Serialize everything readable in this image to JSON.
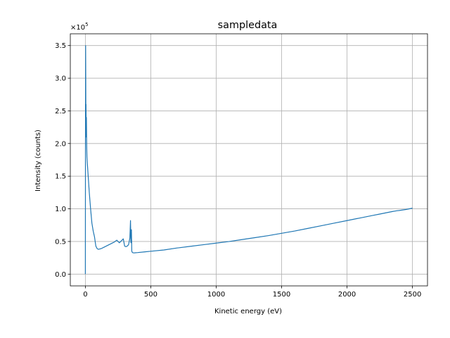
{
  "chart_data": {
    "type": "line",
    "title": "sampledata",
    "xlabel": "Kinetic energy (eV)",
    "ylabel": "Intensity (counts)",
    "y_offset_label": "×10",
    "y_offset_exponent": "5",
    "xlim": [
      -115,
      2615
    ],
    "ylim": [
      -18000,
      368000
    ],
    "x_ticks": [
      0,
      500,
      1000,
      1500,
      2000,
      2500
    ],
    "x_tick_labels": [
      "0",
      "500",
      "1000",
      "1500",
      "2000",
      "2500"
    ],
    "y_ticks": [
      0,
      50000,
      100000,
      150000,
      200000,
      250000,
      300000,
      350000
    ],
    "y_tick_labels": [
      "0.0",
      "0.5",
      "1.0",
      "1.5",
      "2.0",
      "2.5",
      "3.0",
      "3.5"
    ],
    "grid": true,
    "series_color": "#1f77b4",
    "series": [
      {
        "x": [
          0,
          1,
          2,
          3,
          4,
          5,
          6,
          8,
          10,
          12,
          15,
          20,
          25,
          30,
          40,
          50,
          60,
          70,
          80,
          90,
          100,
          110,
          120,
          140,
          160,
          180,
          200,
          220,
          240,
          260,
          270,
          280,
          290,
          300,
          310,
          320,
          330,
          340,
          345,
          348,
          350,
          352,
          355,
          360,
          370,
          380,
          400,
          450,
          500,
          600,
          700,
          800,
          900,
          1000,
          1100,
          1200,
          1300,
          1400,
          1500,
          1600,
          1700,
          1800,
          1900,
          2000,
          2050,
          2100,
          2150,
          2200,
          2250,
          2300,
          2350,
          2380,
          2400,
          2450,
          2500
        ],
        "y": [
          0,
          250000,
          350000,
          300000,
          230000,
          260000,
          210000,
          240000,
          200000,
          180000,
          170000,
          155000,
          140000,
          125000,
          100000,
          78000,
          66000,
          57000,
          43000,
          39000,
          38000,
          38500,
          39000,
          41000,
          43000,
          45000,
          47000,
          49000,
          52000,
          48000,
          50000,
          52000,
          54000,
          43000,
          42000,
          43000,
          45000,
          55000,
          82000,
          48000,
          62000,
          68000,
          35000,
          33000,
          32500,
          32700,
          33000,
          34000,
          35000,
          37000,
          40000,
          42500,
          45000,
          47500,
          50000,
          53000,
          56000,
          59000,
          62500,
          66000,
          70000,
          74000,
          78000,
          82000,
          84000,
          86000,
          88000,
          90000,
          92000,
          94000,
          96000,
          97000,
          97500,
          99000,
          101000
        ]
      }
    ]
  }
}
